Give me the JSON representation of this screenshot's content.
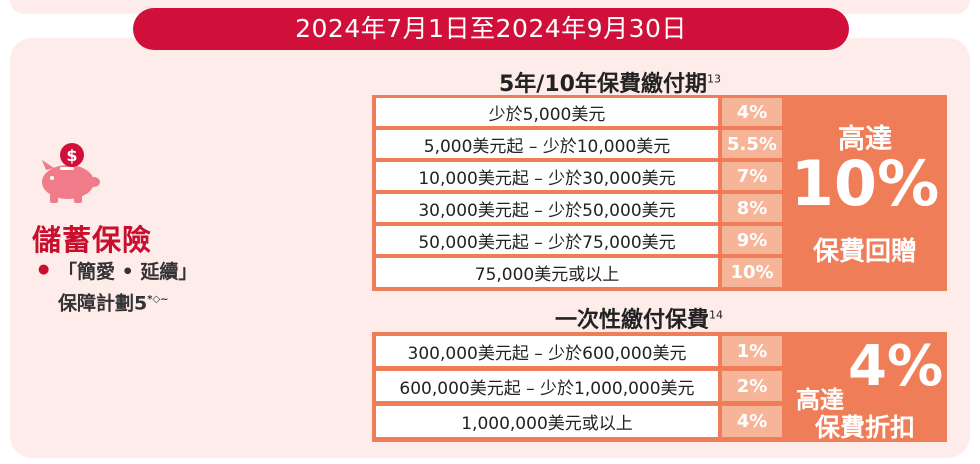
{
  "date_banner": "2024年7月1日至2024年9月30日",
  "product": {
    "title": "儲蓄保險",
    "plan_line1": "「簡愛 • 延續」",
    "plan_line2": "保障計劃5",
    "plan_sup": "*◇~"
  },
  "section1": {
    "title": "5年/10年保費繳付期",
    "sup": "13",
    "rows": [
      {
        "range": "少於5,000美元",
        "rate": "4%"
      },
      {
        "range": "5,000美元起 – 少於10,000美元",
        "rate": "5.5%"
      },
      {
        "range": "10,000美元起 – 少於30,000美元",
        "rate": "7%"
      },
      {
        "range": "30,000美元起 – 少於50,000美元",
        "rate": "8%"
      },
      {
        "range": "50,000美元起 – 少於75,000美元",
        "rate": "9%"
      },
      {
        "range": "75,000美元或以上",
        "rate": "10%"
      }
    ],
    "promo_top": "高達",
    "promo_big": "10%",
    "promo_bottom": "保費回贈"
  },
  "section2": {
    "title": "一次性繳付保費",
    "sup": "14",
    "rows": [
      {
        "range": "300,000美元起 – 少於600,000美元",
        "rate": "1%"
      },
      {
        "range": "600,000美元起 – 少於1,000,000美元",
        "rate": "2%"
      },
      {
        "range": "1,000,000美元或以上",
        "rate": "4%"
      }
    ],
    "promo_top": "高達",
    "promo_big": "4%",
    "promo_bottom": "保費折扣"
  },
  "colors": {
    "banner": "#d0103a",
    "panel_bg": "#fdecea",
    "table_orange": "#ef7d57",
    "rate_cell": "#f6b598",
    "title_red": "#c8102e"
  },
  "icons": {
    "piggy": "piggy-bank-icon"
  }
}
